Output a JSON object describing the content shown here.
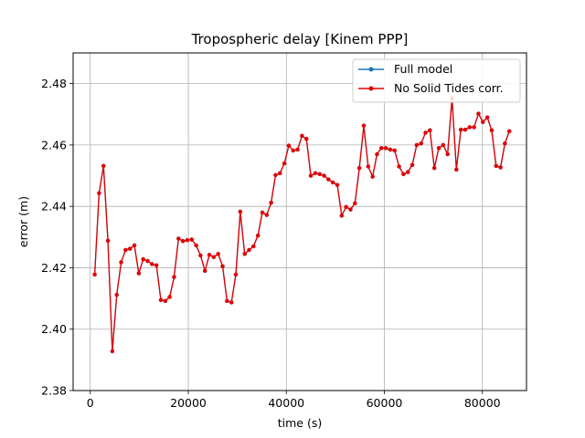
{
  "chart_data": {
    "type": "line",
    "title": "Tropospheric delay [Kinem PPP]",
    "xlabel": "time (s)",
    "ylabel": "error (m)",
    "xlim": [
      -3500,
      89000
    ],
    "ylim": [
      2.38,
      2.49
    ],
    "xticks": [
      0,
      20000,
      40000,
      60000,
      80000
    ],
    "xtick_labels": [
      "0",
      "20000",
      "40000",
      "60000",
      "80000"
    ],
    "yticks": [
      2.38,
      2.4,
      2.42,
      2.44,
      2.46,
      2.48
    ],
    "ytick_labels": [
      "2.38",
      "2.40",
      "2.42",
      "2.44",
      "2.46",
      "2.48"
    ],
    "grid": true,
    "legend_position": "top-right",
    "x": [
      900,
      1800,
      2700,
      3600,
      4500,
      5400,
      6300,
      7200,
      8100,
      9000,
      9900,
      10800,
      11700,
      12600,
      13500,
      14400,
      15300,
      16200,
      17100,
      18000,
      18900,
      19800,
      20700,
      21600,
      22500,
      23400,
      24300,
      25200,
      26100,
      27000,
      27900,
      28800,
      29700,
      30600,
      31500,
      32400,
      33300,
      34200,
      35100,
      36000,
      36900,
      37800,
      38700,
      39600,
      40500,
      41400,
      42300,
      43200,
      44100,
      45000,
      45900,
      46800,
      47700,
      48600,
      49500,
      50400,
      51300,
      52200,
      53100,
      54000,
      54900,
      55800,
      56700,
      57600,
      58500,
      59400,
      60300,
      61200,
      62100,
      63000,
      63900,
      64800,
      65700,
      66600,
      67500,
      68400,
      69300,
      70200,
      71100,
      72000,
      72900,
      73800,
      74700,
      75600,
      76500,
      77400,
      78300,
      79200,
      80100,
      81000,
      81900,
      82800,
      83700,
      84600,
      85500
    ],
    "series": [
      {
        "name": "Full model",
        "color": "#1f77b4",
        "values": [
          2.4178,
          2.4443,
          2.4532,
          2.4288,
          2.3928,
          2.4112,
          2.4218,
          2.4258,
          2.4262,
          2.4273,
          2.4182,
          2.4228,
          2.4222,
          2.4212,
          2.4208,
          2.4095,
          2.4092,
          2.4105,
          2.417,
          2.4295,
          2.4287,
          2.429,
          2.4292,
          2.4273,
          2.424,
          2.419,
          2.4242,
          2.4235,
          2.4245,
          2.4205,
          2.4092,
          2.4087,
          2.4178,
          2.4383,
          2.4245,
          2.4258,
          2.427,
          2.4305,
          2.438,
          2.4372,
          2.4412,
          2.4502,
          2.4508,
          2.454,
          2.4598,
          2.4582,
          2.4585,
          2.463,
          2.462,
          2.45,
          2.4508,
          2.4505,
          2.45,
          2.4488,
          2.4478,
          2.447,
          2.437,
          2.4398,
          2.439,
          2.441,
          2.4525,
          2.4663,
          2.453,
          2.4497,
          2.457,
          2.459,
          2.459,
          2.4585,
          2.4582,
          2.453,
          2.4505,
          2.4512,
          2.4535,
          2.46,
          2.4605,
          2.464,
          2.4648,
          2.4525,
          2.459,
          2.46,
          2.457,
          2.4752,
          2.452,
          2.465,
          2.465,
          2.4658,
          2.4658,
          2.4702,
          2.4675,
          2.469,
          2.4648,
          2.4532,
          2.4527,
          2.4605,
          2.4645
        ]
      },
      {
        "name": "No Solid Tides corr.",
        "color": "#e50000",
        "values": [
          2.4178,
          2.4443,
          2.4532,
          2.4288,
          2.3928,
          2.4112,
          2.4218,
          2.4258,
          2.4262,
          2.4273,
          2.4182,
          2.4228,
          2.4222,
          2.4212,
          2.4208,
          2.4095,
          2.4092,
          2.4105,
          2.417,
          2.4295,
          2.4287,
          2.429,
          2.4292,
          2.4273,
          2.424,
          2.419,
          2.4242,
          2.4235,
          2.4245,
          2.4205,
          2.4092,
          2.4087,
          2.4178,
          2.4383,
          2.4245,
          2.4258,
          2.427,
          2.4305,
          2.438,
          2.4372,
          2.4412,
          2.4502,
          2.4508,
          2.454,
          2.4598,
          2.4582,
          2.4585,
          2.463,
          2.462,
          2.45,
          2.4508,
          2.4505,
          2.45,
          2.4488,
          2.4478,
          2.447,
          2.437,
          2.4398,
          2.439,
          2.441,
          2.4525,
          2.4663,
          2.453,
          2.4497,
          2.457,
          2.459,
          2.459,
          2.4585,
          2.4582,
          2.453,
          2.4505,
          2.4512,
          2.4535,
          2.46,
          2.4605,
          2.464,
          2.4648,
          2.4525,
          2.459,
          2.46,
          2.457,
          2.4752,
          2.452,
          2.465,
          2.465,
          2.4658,
          2.4658,
          2.4702,
          2.4675,
          2.469,
          2.4648,
          2.4532,
          2.4527,
          2.4605,
          2.4645
        ]
      }
    ]
  }
}
